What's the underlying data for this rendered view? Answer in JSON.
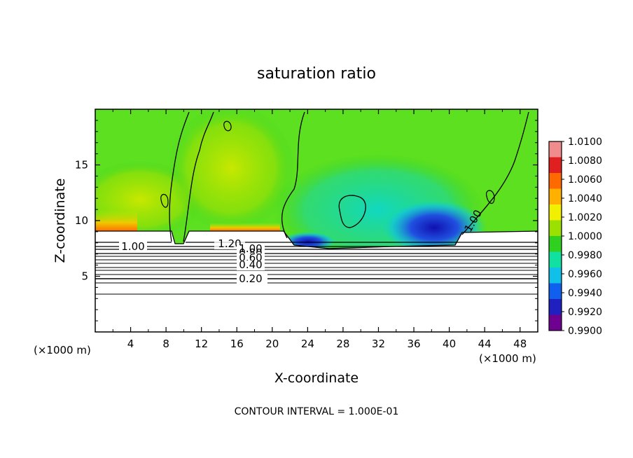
{
  "chart_data": {
    "type": "heatmap",
    "title": "saturation ratio",
    "xlabel": "X-coordinate",
    "ylabel": "Z-coordinate",
    "x_multiplier_left": "(×1000 m)",
    "x_multiplier_right": "(×1000 m)",
    "xlim": [
      0,
      50
    ],
    "ylim": [
      0,
      20
    ],
    "x_ticks": [
      4,
      8,
      12,
      16,
      20,
      24,
      28,
      32,
      36,
      40,
      44,
      48
    ],
    "y_ticks": [
      5,
      10,
      15
    ],
    "colorbar": {
      "levels": [
        "1.0100",
        "1.0080",
        "1.0060",
        "1.0040",
        "1.0020",
        "1.0000",
        "0.9980",
        "0.9960",
        "0.9940",
        "0.9920",
        "0.9900"
      ],
      "colors": [
        "#f08c8c",
        "#e02020",
        "#ff6a00",
        "#ffb000",
        "#f0f000",
        "#9be000",
        "#30d020",
        "#10e0a0",
        "#10c0e8",
        "#1060f0",
        "#2020c0",
        "#700090"
      ]
    },
    "contour_labels": [
      "1.00",
      "1.20",
      "1.00",
      "0.80",
      "0.60",
      "0.40",
      "0.20",
      "1.00"
    ],
    "footer": "CONTOUR INTERVAL = 1.000E-01"
  }
}
